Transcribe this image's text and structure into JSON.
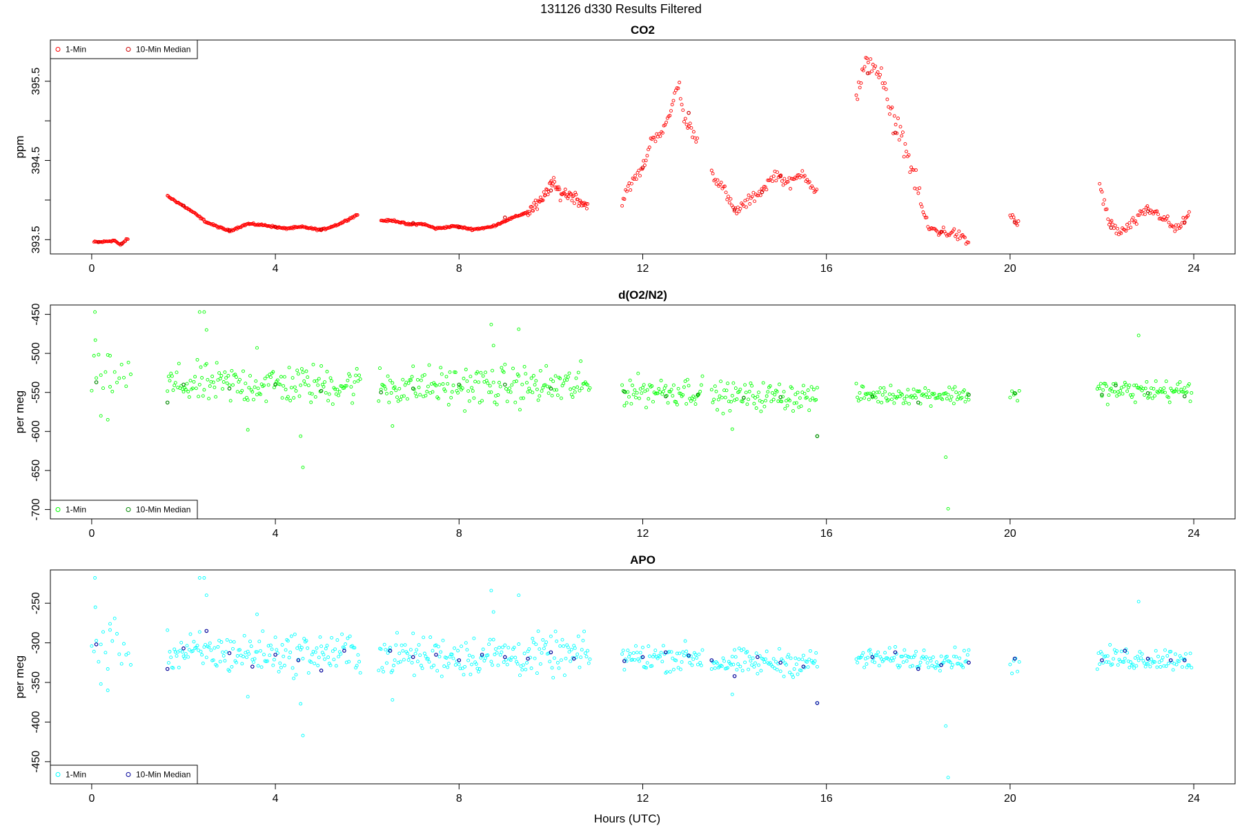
{
  "figure": {
    "title": "131126   d330   Results Filtered",
    "xlabel": "Hours (UTC)"
  },
  "chart_data": [
    {
      "type": "scatter",
      "title": "CO2",
      "ylabel": "ppm",
      "xlim": [
        -0.9,
        24.9
      ],
      "ylim": [
        393.32,
        396.02
      ],
      "x_ticks": [
        "0",
        "4",
        "8",
        "12",
        "16",
        "20",
        "24"
      ],
      "x_tick_values": [
        0,
        4,
        8,
        12,
        16,
        20,
        24
      ],
      "y_ticks": [
        "393.5",
        "394.5",
        "395.5"
      ],
      "y_tick_values": [
        393.5,
        394.5,
        395.5
      ],
      "y_minor_ticks": [
        394.0,
        395.0
      ],
      "legend": {
        "position": "top-left",
        "entries": [
          "1-Min",
          "10-Min Median"
        ]
      },
      "colors": {
        "one_min": "#ff0000",
        "median": "#cc0000"
      },
      "series": [
        {
          "name": "1-Min",
          "segments": [
            {
              "x": [
                0.05,
                0.2,
                0.35,
                0.5,
                0.62,
                0.8
              ],
              "y": [
                393.47,
                393.47,
                393.48,
                393.49,
                393.43,
                393.52
              ]
            },
            {
              "x": [
                1.65,
                1.9,
                2.2,
                2.5,
                2.8,
                3.0,
                3.4,
                3.8,
                4.2,
                4.6,
                5.0,
                5.4,
                5.8
              ],
              "y": [
                394.05,
                393.96,
                393.85,
                393.72,
                393.65,
                393.61,
                393.7,
                393.68,
                393.64,
                393.66,
                393.62,
                393.7,
                393.82
              ]
            },
            {
              "x": [
                6.3,
                6.6,
                6.9,
                7.2,
                7.5,
                7.9,
                8.3,
                8.7,
                9.1,
                9.5,
                9.8,
                10.0,
                10.2,
                10.5,
                10.8
              ],
              "y": [
                393.74,
                393.74,
                393.69,
                393.7,
                393.64,
                393.67,
                393.63,
                393.66,
                393.76,
                393.85,
                393.98,
                394.22,
                394.1,
                394.05,
                393.92
              ]
            },
            {
              "x": [
                11.55,
                11.8,
                12.0,
                12.2,
                12.4,
                12.55,
                12.7,
                12.8,
                12.9,
                13.05,
                13.2
              ],
              "y": [
                394.0,
                394.25,
                394.4,
                394.78,
                394.86,
                394.98,
                395.35,
                395.45,
                395.0,
                394.9,
                394.75
              ]
            },
            {
              "x": [
                13.5,
                13.75,
                14.0,
                14.3,
                14.6,
                14.9,
                15.2,
                15.5,
                15.8
              ],
              "y": [
                394.35,
                394.15,
                393.85,
                393.98,
                394.13,
                394.33,
                394.2,
                394.35,
                394.08
              ]
            },
            {
              "x": [
                16.65,
                16.85,
                17.0,
                17.2,
                17.4,
                17.6,
                17.8,
                18.0,
                18.2,
                18.5,
                18.8,
                19.1
              ],
              "y": [
                395.3,
                395.68,
                395.75,
                395.55,
                395.05,
                394.9,
                394.5,
                394.1,
                393.65,
                393.6,
                393.58,
                393.45
              ]
            },
            {
              "x": [
                20.0,
                20.2
              ],
              "y": [
                393.82,
                393.68
              ]
            },
            {
              "x": [
                21.95,
                22.15,
                22.4,
                22.7,
                23.0,
                23.3,
                23.6,
                23.9
              ],
              "y": [
                394.2,
                393.72,
                393.58,
                393.72,
                393.88,
                393.8,
                393.62,
                393.8
              ]
            }
          ]
        },
        {
          "name": "10-Min Median",
          "x": [
            0.15,
            0.65,
            2.0,
            3.0,
            4.0,
            5.0,
            7.0,
            8.0,
            9.0,
            10.0,
            12.0,
            13.0,
            14.0,
            14.6,
            15.0,
            16.9,
            17.5,
            18.5,
            20.1,
            22.2,
            23.0,
            23.8
          ],
          "y": [
            393.47,
            393.45,
            393.93,
            393.62,
            393.66,
            393.63,
            393.71,
            393.66,
            393.78,
            394.12,
            394.41,
            395.1,
            393.88,
            394.1,
            394.3,
            395.6,
            394.85,
            393.6,
            393.72,
            393.65,
            393.86,
            393.72
          ]
        }
      ]
    },
    {
      "type": "scatter",
      "title": "d(O2/N2)",
      "ylabel": "per meg",
      "xlim": [
        -0.9,
        24.9
      ],
      "ylim": [
        -712,
        -438
      ],
      "x_ticks": [
        "0",
        "4",
        "8",
        "12",
        "16",
        "20",
        "24"
      ],
      "x_tick_values": [
        0,
        4,
        8,
        12,
        16,
        20,
        24
      ],
      "y_ticks": [
        "-450",
        "-500",
        "-550",
        "-600",
        "-650",
        "-700"
      ],
      "y_tick_values": [
        -450,
        -500,
        -550,
        -600,
        -650,
        -700
      ],
      "legend": {
        "position": "bottom-left",
        "entries": [
          "1-Min",
          "10-Min Median"
        ]
      },
      "colors": {
        "one_min": "#00ff00",
        "median": "#008800"
      },
      "series": [
        {
          "name": "1-Min",
          "blocks": [
            {
              "start": 0.0,
              "end": 0.85,
              "center": -530,
              "spread": 22,
              "step": 0.05
            },
            {
              "start": 1.65,
              "end": 5.85,
              "center": -540,
              "spread": 22,
              "step": 0.025
            },
            {
              "start": 6.25,
              "end": 10.85,
              "center": -542,
              "spread": 22,
              "step": 0.025
            },
            {
              "start": 11.55,
              "end": 13.3,
              "center": -548,
              "spread": 16,
              "step": 0.025
            },
            {
              "start": 13.5,
              "end": 15.8,
              "center": -555,
              "spread": 15,
              "step": 0.025
            },
            {
              "start": 16.65,
              "end": 19.1,
              "center": -553,
              "spread": 10,
              "step": 0.025
            },
            {
              "start": 20.0,
              "end": 20.2,
              "center": -553,
              "spread": 12,
              "step": 0.04
            },
            {
              "start": 21.9,
              "end": 23.95,
              "center": -548,
              "spread": 12,
              "step": 0.025
            }
          ],
          "outliers": {
            "x": [
              0.07,
              0.08,
              0.2,
              0.35,
              0.4,
              2.35,
              2.45,
              2.5,
              3.4,
              3.6,
              4.6,
              4.55,
              6.55,
              8.7,
              8.75,
              9.3,
              13.95,
              15.8,
              18.6,
              18.65,
              22.8
            ],
            "y": [
              -447,
              -483,
              -580,
              -585,
              -503,
              -447,
              -447,
              -470,
              -598,
              -493,
              -646,
              -606,
              -593,
              -463,
              -490,
              -469,
              -597,
              -606,
              -633,
              -699,
              -477
            ]
          }
        },
        {
          "name": "10-Min Median",
          "x": [
            0.1,
            1.65,
            2.0,
            3.0,
            4.0,
            5.0,
            6.3,
            7.0,
            8.0,
            9.0,
            10.0,
            11.6,
            12.5,
            13.2,
            14.2,
            15.0,
            15.8,
            17.0,
            18.0,
            19.1,
            20.1,
            22.0,
            22.3,
            23.0,
            23.8
          ],
          "y": [
            -537,
            -563,
            -540,
            -545,
            -540,
            -548,
            -550,
            -545,
            -540,
            -540,
            -545,
            -549,
            -555,
            -553,
            -557,
            -556,
            -606,
            -555,
            -563,
            -553,
            -551,
            -553,
            -541,
            -551,
            -555
          ]
        }
      ]
    },
    {
      "type": "scatter",
      "title": "APO",
      "ylabel": "per meg",
      "xlim": [
        -0.9,
        24.9
      ],
      "ylim": [
        -478,
        -208
      ],
      "x_ticks": [
        "0",
        "4",
        "8",
        "12",
        "16",
        "20",
        "24"
      ],
      "x_tick_values": [
        0,
        4,
        8,
        12,
        16,
        20,
        24
      ],
      "y_ticks": [
        "-250",
        "-300",
        "-350",
        "-400",
        "-450"
      ],
      "y_tick_values": [
        -250,
        -300,
        -350,
        -400,
        -450
      ],
      "legend": {
        "position": "bottom-left",
        "entries": [
          "1-Min",
          "10-Min Median"
        ]
      },
      "colors": {
        "one_min": "#00ffff",
        "median": "#000099"
      },
      "series": [
        {
          "name": "1-Min",
          "blocks": [
            {
              "start": 0.0,
              "end": 0.85,
              "center": -305,
              "spread": 25,
              "step": 0.05
            },
            {
              "start": 1.65,
              "end": 5.85,
              "center": -313,
              "spread": 22,
              "step": 0.025
            },
            {
              "start": 6.25,
              "end": 10.85,
              "center": -316,
              "spread": 22,
              "step": 0.025
            },
            {
              "start": 11.55,
              "end": 13.3,
              "center": -318,
              "spread": 15,
              "step": 0.025
            },
            {
              "start": 13.5,
              "end": 15.8,
              "center": -325,
              "spread": 14,
              "step": 0.025
            },
            {
              "start": 16.65,
              "end": 19.1,
              "center": -320,
              "spread": 11,
              "step": 0.025
            },
            {
              "start": 20.0,
              "end": 20.2,
              "center": -325,
              "spread": 12,
              "step": 0.04
            },
            {
              "start": 21.9,
              "end": 23.95,
              "center": -320,
              "spread": 12,
              "step": 0.025
            }
          ],
          "outliers": {
            "x": [
              0.07,
              0.08,
              0.2,
              0.35,
              0.4,
              2.35,
              2.45,
              2.5,
              3.4,
              3.6,
              4.6,
              4.55,
              6.55,
              8.7,
              8.75,
              9.3,
              13.95,
              15.8,
              18.6,
              18.65,
              22.8
            ],
            "y": [
              -218,
              -255,
              -352,
              -360,
              -276,
              -218,
              -218,
              -240,
              -368,
              -264,
              -417,
              -377,
              -372,
              -234,
              -261,
              -240,
              -365,
              -376,
              -405,
              -470,
              -248
            ]
          }
        },
        {
          "name": "10-Min Median",
          "x": [
            0.1,
            1.65,
            2.0,
            2.5,
            3.0,
            3.5,
            4.0,
            4.5,
            5.0,
            5.5,
            6.5,
            7.0,
            7.5,
            8.0,
            8.5,
            9.0,
            9.5,
            10.0,
            10.5,
            11.6,
            12.0,
            12.5,
            13.0,
            13.5,
            14.0,
            14.5,
            15.0,
            15.5,
            15.8,
            17.0,
            17.5,
            18.0,
            18.5,
            19.1,
            20.1,
            22.0,
            22.5,
            23.0,
            23.5,
            23.8
          ],
          "y": [
            -302,
            -333,
            -307,
            -285,
            -313,
            -330,
            -315,
            -322,
            -335,
            -310,
            -310,
            -318,
            -315,
            -322,
            -315,
            -318,
            -320,
            -312,
            -320,
            -323,
            -318,
            -312,
            -316,
            -322,
            -342,
            -318,
            -325,
            -330,
            -376,
            -318,
            -312,
            -333,
            -328,
            -325,
            -320,
            -322,
            -310,
            -320,
            -322,
            -322
          ]
        }
      ]
    }
  ]
}
